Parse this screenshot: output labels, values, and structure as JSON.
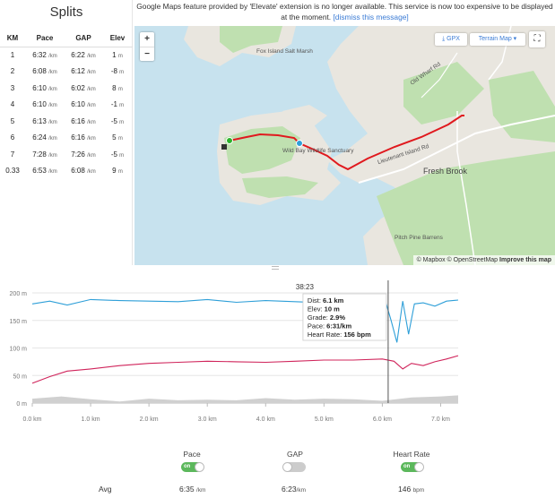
{
  "splits": {
    "title": "Splits",
    "columns": [
      "KM",
      "Pace",
      "GAP",
      "Elev"
    ],
    "rows": [
      {
        "km": "1",
        "pace": "6:32",
        "pace_unit": "/km",
        "gap": "6:22",
        "gap_unit": "/km",
        "elev": "1",
        "elev_unit": "m"
      },
      {
        "km": "2",
        "pace": "6:08",
        "pace_unit": "/km",
        "gap": "6:12",
        "gap_unit": "/km",
        "elev": "-8",
        "elev_unit": "m"
      },
      {
        "km": "3",
        "pace": "6:10",
        "pace_unit": "/km",
        "gap": "6:02",
        "gap_unit": "/km",
        "elev": "8",
        "elev_unit": "m"
      },
      {
        "km": "4",
        "pace": "6:10",
        "pace_unit": "/km",
        "gap": "6:10",
        "gap_unit": "/km",
        "elev": "-1",
        "elev_unit": "m"
      },
      {
        "km": "5",
        "pace": "6:13",
        "pace_unit": "/km",
        "gap": "6:16",
        "gap_unit": "/km",
        "elev": "-5",
        "elev_unit": "m"
      },
      {
        "km": "6",
        "pace": "6:24",
        "pace_unit": "/km",
        "gap": "6:16",
        "gap_unit": "/km",
        "elev": "5",
        "elev_unit": "m"
      },
      {
        "km": "7",
        "pace": "7:28",
        "pace_unit": "/km",
        "gap": "7:26",
        "gap_unit": "/km",
        "elev": "-5",
        "elev_unit": "m"
      },
      {
        "km": "0.33",
        "pace": "6:53",
        "pace_unit": "/km",
        "gap": "6:08",
        "gap_unit": "/km",
        "elev": "9",
        "elev_unit": "m"
      }
    ]
  },
  "notice": {
    "text": "Google Maps feature provided by 'Elevate' extension is no longer available. This service is now too expensive to be displayed at the moment.",
    "link": "[dismiss this message]"
  },
  "map": {
    "zoom_in": "+",
    "zoom_out": "−",
    "gpx_label": "GPX",
    "terrain_label": "Terrain Map ▾",
    "fullscreen_icon": "⛶",
    "labels": {
      "fox_island": "Fox Island Salt Marsh",
      "wildlife": "Wild Bay Wildlife Sanctuary",
      "fresh_brook": "Fresh Brook",
      "pitch_pine": "Pitch Pine Barrens",
      "road": "Lieutenant Island Rd",
      "old_wharf": "Old Wharf Rd",
      "route_6": "6"
    },
    "attribution": {
      "mapbox": "© Mapbox",
      "osm": "© OpenStreetMap",
      "improve": "Improve this map"
    },
    "colors": {
      "water": "#c7e2ee",
      "land": "#e9e6df",
      "green": "#bfe0b0",
      "route": "#e0191e"
    }
  },
  "chart_data": {
    "type": "line",
    "x_unit": "km",
    "xlim": [
      0,
      7.3
    ],
    "x_ticks": [
      "0.0 km",
      "1.0 km",
      "2.0 km",
      "3.0 km",
      "4.0 km",
      "5.0 km",
      "6.0 km",
      "7.0 km"
    ],
    "ylim": [
      0,
      200
    ],
    "y_ticks": [
      "0 m",
      "50 m",
      "100 m",
      "150 m",
      "200 m"
    ],
    "series": [
      {
        "key": "pace",
        "color": "#2e9fd8",
        "x": [
          0,
          0.3,
          0.6,
          1.0,
          1.5,
          2.0,
          2.5,
          3.0,
          3.5,
          4.0,
          4.5,
          5.0,
          5.5,
          5.9,
          6.05,
          6.15,
          6.25,
          6.35,
          6.45,
          6.55,
          6.7,
          6.9,
          7.1,
          7.3
        ],
        "y": [
          180,
          185,
          178,
          188,
          186,
          185,
          184,
          188,
          183,
          186,
          184,
          182,
          188,
          180,
          186,
          150,
          110,
          185,
          125,
          180,
          182,
          176,
          185,
          187
        ]
      },
      {
        "key": "heart_rate",
        "color": "#d0245b",
        "x": [
          0,
          0.3,
          0.6,
          1.0,
          1.5,
          2.0,
          2.5,
          3.0,
          3.5,
          4.0,
          4.5,
          5.0,
          5.5,
          6.0,
          6.2,
          6.35,
          6.5,
          6.7,
          6.9,
          7.1,
          7.3
        ],
        "y": [
          36,
          48,
          58,
          62,
          68,
          72,
          74,
          76,
          75,
          74,
          76,
          78,
          78,
          80,
          76,
          62,
          72,
          68,
          75,
          80,
          86
        ]
      },
      {
        "key": "elevation",
        "color": "#d0d0d0",
        "x": [
          0,
          0.5,
          1.0,
          1.5,
          2.0,
          2.5,
          3.0,
          3.5,
          4.0,
          4.5,
          5.0,
          5.5,
          6.0,
          6.5,
          7.0,
          7.3
        ],
        "y": [
          8,
          12,
          7,
          3,
          8,
          5,
          6,
          5,
          9,
          6,
          8,
          7,
          4,
          10,
          12,
          14
        ]
      }
    ],
    "cursor_x": 6.1,
    "tooltip": {
      "time": "38:23",
      "dist_label": "Dist:",
      "dist_value": "6.1 km",
      "elev_label": "Elev:",
      "elev_value": "10 m",
      "grade_label": "Grade:",
      "grade_value": "2.9%",
      "pace_label": "Pace:",
      "pace_value": "6:31/km",
      "hr_label": "Heart Rate:",
      "hr_value": "156 bpm"
    }
  },
  "stats": {
    "pace": {
      "label": "Pace",
      "toggle": "on",
      "toggle_text": "on",
      "avg_value": "6:35",
      "avg_unit": "/km"
    },
    "gap": {
      "label": "GAP",
      "toggle": "off",
      "avg_value": "6:23",
      "avg_unit": "/km"
    },
    "heart_rate": {
      "label": "Heart Rate",
      "toggle": "on",
      "toggle_text": "on",
      "avg_value": "146",
      "avg_unit": "bpm"
    },
    "avg_label": "Avg"
  }
}
